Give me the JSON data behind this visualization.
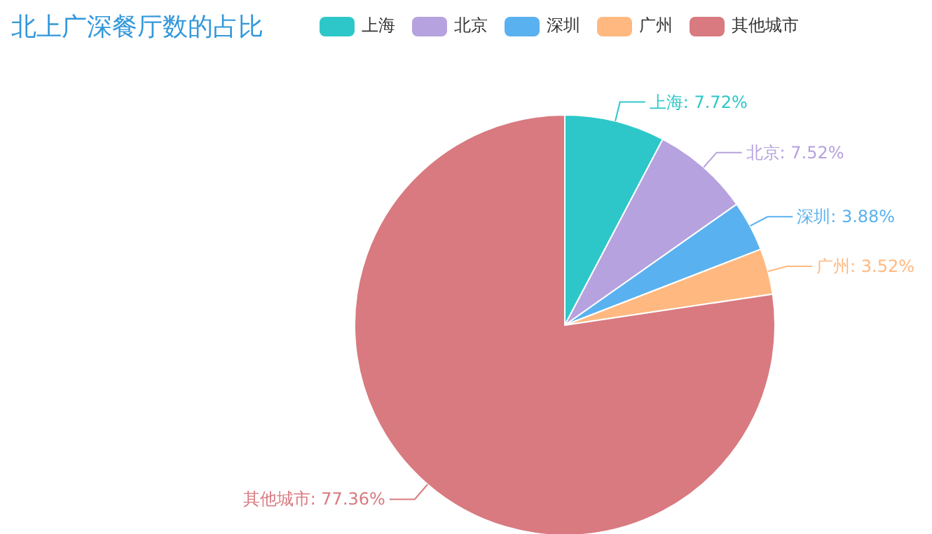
{
  "chart_data": {
    "type": "pie",
    "title": "北上广深餐厅数的占比",
    "categories": [
      "上海",
      "北京",
      "深圳",
      "广州",
      "其他城市"
    ],
    "values": [
      7.72,
      7.52,
      3.88,
      3.52,
      77.36
    ],
    "colors": [
      "#2ec7c9",
      "#b6a2de",
      "#5ab1ef",
      "#ffb980",
      "#d87a80"
    ],
    "value_labels": [
      "上海: 7.72%",
      "北京: 7.52%",
      "深圳: 3.88%",
      "广州: 3.52%",
      "其他城市: 77.36%"
    ],
    "legend": "top"
  }
}
